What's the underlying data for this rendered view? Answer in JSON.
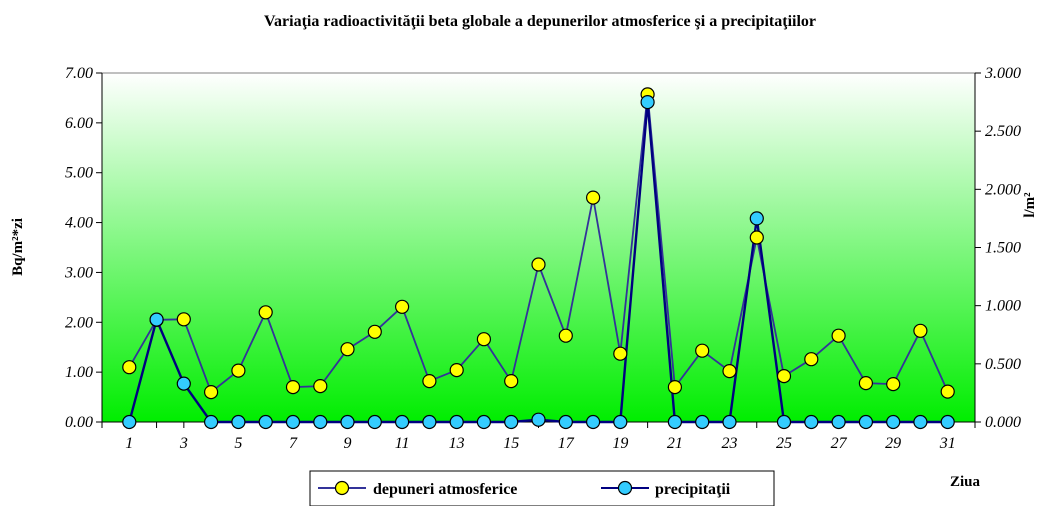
{
  "chart_data": {
    "type": "line",
    "title": "Variaţia radioactivităţii beta globale a depunerilor atmosferice şi a precipitaţiilor",
    "xlabel": "Ziua",
    "ylabel": "Bq/m²*zi",
    "y2label": "l/m²",
    "x": [
      1,
      2,
      3,
      4,
      5,
      6,
      7,
      8,
      9,
      10,
      11,
      12,
      13,
      14,
      15,
      16,
      17,
      18,
      19,
      20,
      21,
      22,
      23,
      24,
      25,
      26,
      27,
      28,
      29,
      30,
      31
    ],
    "x_tick_labels": [
      "1",
      "3",
      "5",
      "7",
      "9",
      "11",
      "13",
      "15",
      "17",
      "19",
      "21",
      "23",
      "25",
      "27",
      "29",
      "31"
    ],
    "ylim": [
      0,
      7
    ],
    "y_tick_labels": [
      "0.00",
      "1.00",
      "2.00",
      "3.00",
      "4.00",
      "5.00",
      "6.00",
      "7.00"
    ],
    "y2lim": [
      0,
      3
    ],
    "y2_tick_labels": [
      "0.000",
      "0.500",
      "1.000",
      "1.500",
      "2.000",
      "2.500",
      "3.000"
    ],
    "grid": false,
    "legend_position": "bottom",
    "series": [
      {
        "name": "depuneri atmosferice",
        "axis": "left",
        "line_color": "#333399",
        "marker_color": "#ffff00",
        "values": [
          1.1,
          2.05,
          2.06,
          0.6,
          1.03,
          2.2,
          0.7,
          0.72,
          1.46,
          1.81,
          2.31,
          0.82,
          1.04,
          1.66,
          0.82,
          3.16,
          1.73,
          4.5,
          1.37,
          6.57,
          0.7,
          1.43,
          1.02,
          3.7,
          0.92,
          1.26,
          1.73,
          0.78,
          0.76,
          1.83,
          0.61
        ]
      },
      {
        "name": "precipitaţii",
        "axis": "right",
        "line_color": "#000080",
        "marker_color": "#33ccff",
        "values": [
          0,
          0.88,
          0.33,
          0,
          0,
          0,
          0,
          0,
          0,
          0,
          0,
          0,
          0,
          0,
          0,
          0.02,
          0,
          0,
          0,
          2.75,
          0,
          0,
          0,
          1.75,
          0,
          0,
          0,
          0,
          0,
          0,
          0
        ]
      }
    ],
    "colors": {
      "plot_top": "#ffffff",
      "plot_bottom": "#00ee00"
    }
  }
}
